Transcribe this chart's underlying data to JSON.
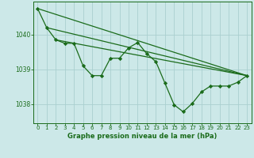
{
  "title": "Graphe pression niveau de la mer (hPa)",
  "background_color": "#cce8e8",
  "grid_color": "#aad0d0",
  "line_color": "#1a6b1a",
  "xlim": [
    -0.5,
    23.5
  ],
  "ylim": [
    1037.45,
    1040.95
  ],
  "yticks": [
    1038,
    1039,
    1040
  ],
  "xticks": [
    0,
    1,
    2,
    3,
    4,
    5,
    6,
    7,
    8,
    9,
    10,
    11,
    12,
    13,
    14,
    15,
    16,
    17,
    18,
    19,
    20,
    21,
    22,
    23
  ],
  "main_series": [
    1040.75,
    1040.2,
    1039.85,
    1039.75,
    1039.75,
    1039.1,
    1038.82,
    1038.82,
    1039.32,
    1039.32,
    1039.62,
    1039.77,
    1039.45,
    1039.22,
    1038.6,
    1037.98,
    1037.78,
    1038.02,
    1038.35,
    1038.52,
    1038.52,
    1038.52,
    1038.63,
    1038.82
  ],
  "trend_line1": [
    [
      0,
      1040.75
    ],
    [
      23,
      1038.82
    ]
  ],
  "trend_line2": [
    [
      1,
      1040.2
    ],
    [
      23,
      1038.82
    ]
  ],
  "trend_line3": [
    [
      2,
      1039.85
    ],
    [
      23,
      1038.82
    ]
  ]
}
